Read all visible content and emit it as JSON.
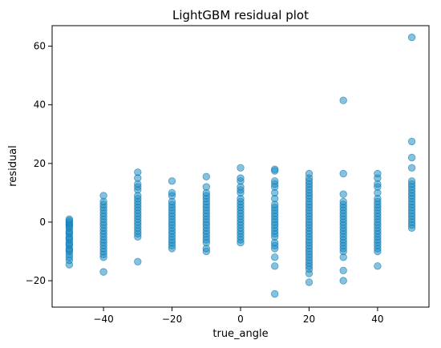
{
  "chart_data": {
    "type": "scatter",
    "title": "LightGBM residual plot",
    "xlabel": "true_angle",
    "ylabel": "residual",
    "xlim": [
      -55,
      55
    ],
    "ylim": [
      -29,
      67
    ],
    "xticks": [
      -40,
      -20,
      0,
      20,
      40
    ],
    "yticks": [
      -20,
      0,
      20,
      40,
      60
    ],
    "xtick_labels": [
      "−40",
      "−20",
      "0",
      "20",
      "40"
    ],
    "ytick_labels": [
      "−20",
      "0",
      "20",
      "40",
      "60"
    ],
    "grid": false,
    "marker_color": "#1f8fc4",
    "marker_edge_color": "#0b6fa8",
    "marker_opacity": 0.55,
    "series": [
      {
        "points": [
          [
            -50,
            -14.5
          ],
          [
            -50,
            -13
          ],
          [
            -50,
            -12
          ],
          [
            -50,
            -11
          ],
          [
            -50,
            -10
          ],
          [
            -50,
            -9.5
          ],
          [
            -50,
            -9
          ],
          [
            -50,
            -8
          ],
          [
            -50,
            -7.5
          ],
          [
            -50,
            -7
          ],
          [
            -50,
            -6
          ],
          [
            -50,
            -5.5
          ],
          [
            -50,
            -5
          ],
          [
            -50,
            -4
          ],
          [
            -50,
            -3.5
          ],
          [
            -50,
            -3
          ],
          [
            -50,
            -2
          ],
          [
            -50,
            -1.5
          ],
          [
            -50,
            -1
          ],
          [
            -50,
            -0.5
          ],
          [
            -50,
            0
          ],
          [
            -50,
            0.5
          ],
          [
            -50,
            1
          ],
          [
            -40,
            -17
          ],
          [
            -40,
            -12
          ],
          [
            -40,
            -11
          ],
          [
            -40,
            -10
          ],
          [
            -40,
            -9
          ],
          [
            -40,
            -8
          ],
          [
            -40,
            -7
          ],
          [
            -40,
            -6
          ],
          [
            -40,
            -5
          ],
          [
            -40,
            -4
          ],
          [
            -40,
            -3
          ],
          [
            -40,
            -2
          ],
          [
            -40,
            -1
          ],
          [
            -40,
            0
          ],
          [
            -40,
            1
          ],
          [
            -40,
            2
          ],
          [
            -40,
            3
          ],
          [
            -40,
            4
          ],
          [
            -40,
            5
          ],
          [
            -40,
            6
          ],
          [
            -40,
            7
          ],
          [
            -40,
            9
          ],
          [
            -30,
            -13.5
          ],
          [
            -30,
            -5
          ],
          [
            -30,
            -4
          ],
          [
            -30,
            -3
          ],
          [
            -30,
            -2
          ],
          [
            -30,
            -1
          ],
          [
            -30,
            0
          ],
          [
            -30,
            1
          ],
          [
            -30,
            2
          ],
          [
            -30,
            3
          ],
          [
            -30,
            4
          ],
          [
            -30,
            5
          ],
          [
            -30,
            6
          ],
          [
            -30,
            7
          ],
          [
            -30,
            8
          ],
          [
            -30,
            9
          ],
          [
            -30,
            11
          ],
          [
            -30,
            12
          ],
          [
            -30,
            13
          ],
          [
            -30,
            15
          ],
          [
            -30,
            17
          ],
          [
            -20,
            -9
          ],
          [
            -20,
            -8
          ],
          [
            -20,
            -7
          ],
          [
            -20,
            -6
          ],
          [
            -20,
            -5
          ],
          [
            -20,
            -4
          ],
          [
            -20,
            -3
          ],
          [
            -20,
            -2
          ],
          [
            -20,
            -1
          ],
          [
            -20,
            0
          ],
          [
            -20,
            1
          ],
          [
            -20,
            2
          ],
          [
            -20,
            3
          ],
          [
            -20,
            4
          ],
          [
            -20,
            5
          ],
          [
            -20,
            6
          ],
          [
            -20,
            7
          ],
          [
            -20,
            9
          ],
          [
            -20,
            10
          ],
          [
            -20,
            14
          ],
          [
            -10,
            -10
          ],
          [
            -10,
            -9
          ],
          [
            -10,
            -7
          ],
          [
            -10,
            -6
          ],
          [
            -10,
            -5
          ],
          [
            -10,
            -4
          ],
          [
            -10,
            -3
          ],
          [
            -10,
            -2
          ],
          [
            -10,
            -1
          ],
          [
            -10,
            0
          ],
          [
            -10,
            1
          ],
          [
            -10,
            2
          ],
          [
            -10,
            3
          ],
          [
            -10,
            4
          ],
          [
            -10,
            5
          ],
          [
            -10,
            6
          ],
          [
            -10,
            7
          ],
          [
            -10,
            8
          ],
          [
            -10,
            9
          ],
          [
            -10,
            10
          ],
          [
            -10,
            12
          ],
          [
            -10,
            15.5
          ],
          [
            0,
            -7
          ],
          [
            0,
            -6
          ],
          [
            0,
            -5
          ],
          [
            0,
            -4
          ],
          [
            0,
            -3
          ],
          [
            0,
            -2
          ],
          [
            0,
            -1
          ],
          [
            0,
            0
          ],
          [
            0,
            1
          ],
          [
            0,
            2
          ],
          [
            0,
            3
          ],
          [
            0,
            4
          ],
          [
            0,
            5
          ],
          [
            0,
            6
          ],
          [
            0,
            7
          ],
          [
            0,
            8
          ],
          [
            0,
            10
          ],
          [
            0,
            11
          ],
          [
            0,
            12
          ],
          [
            0,
            14
          ],
          [
            0,
            15
          ],
          [
            0,
            18.5
          ],
          [
            10,
            -24.5
          ],
          [
            10,
            -15
          ],
          [
            10,
            -12
          ],
          [
            10,
            -9
          ],
          [
            10,
            -8
          ],
          [
            10,
            -7
          ],
          [
            10,
            -5
          ],
          [
            10,
            -4
          ],
          [
            10,
            -3
          ],
          [
            10,
            -2
          ],
          [
            10,
            -1
          ],
          [
            10,
            0
          ],
          [
            10,
            1
          ],
          [
            10,
            2
          ],
          [
            10,
            3
          ],
          [
            10,
            4
          ],
          [
            10,
            5
          ],
          [
            10,
            6
          ],
          [
            10,
            8
          ],
          [
            10,
            10
          ],
          [
            10,
            12
          ],
          [
            10,
            13
          ],
          [
            10,
            14
          ],
          [
            10,
            17.5
          ],
          [
            10,
            18
          ],
          [
            20,
            -20.5
          ],
          [
            20,
            -17.5
          ],
          [
            20,
            -16
          ],
          [
            20,
            -15
          ],
          [
            20,
            -14
          ],
          [
            20,
            -13
          ],
          [
            20,
            -12
          ],
          [
            20,
            -11
          ],
          [
            20,
            -10
          ],
          [
            20,
            -9
          ],
          [
            20,
            -8
          ],
          [
            20,
            -7
          ],
          [
            20,
            -6
          ],
          [
            20,
            -5
          ],
          [
            20,
            -4
          ],
          [
            20,
            -3
          ],
          [
            20,
            -2
          ],
          [
            20,
            -1
          ],
          [
            20,
            0
          ],
          [
            20,
            1
          ],
          [
            20,
            2
          ],
          [
            20,
            3
          ],
          [
            20,
            4
          ],
          [
            20,
            5
          ],
          [
            20,
            6
          ],
          [
            20,
            7
          ],
          [
            20,
            8
          ],
          [
            20,
            9
          ],
          [
            20,
            10
          ],
          [
            20,
            11
          ],
          [
            20,
            12
          ],
          [
            20,
            13
          ],
          [
            20,
            14
          ],
          [
            20,
            15
          ],
          [
            20,
            16.5
          ],
          [
            30,
            -20
          ],
          [
            30,
            -16.5
          ],
          [
            30,
            -12
          ],
          [
            30,
            -10
          ],
          [
            30,
            -9
          ],
          [
            30,
            -8
          ],
          [
            30,
            -7
          ],
          [
            30,
            -6
          ],
          [
            30,
            -5
          ],
          [
            30,
            -4
          ],
          [
            30,
            -3
          ],
          [
            30,
            -2
          ],
          [
            30,
            -1
          ],
          [
            30,
            0
          ],
          [
            30,
            1
          ],
          [
            30,
            2
          ],
          [
            30,
            3
          ],
          [
            30,
            4
          ],
          [
            30,
            5
          ],
          [
            30,
            6
          ],
          [
            30,
            7
          ],
          [
            30,
            9.5
          ],
          [
            30,
            16.5
          ],
          [
            30,
            41.5
          ],
          [
            40,
            -15
          ],
          [
            40,
            -10
          ],
          [
            40,
            -9
          ],
          [
            40,
            -8
          ],
          [
            40,
            -7
          ],
          [
            40,
            -6
          ],
          [
            40,
            -5
          ],
          [
            40,
            -4
          ],
          [
            40,
            -3
          ],
          [
            40,
            -2
          ],
          [
            40,
            -1
          ],
          [
            40,
            0
          ],
          [
            40,
            1
          ],
          [
            40,
            2
          ],
          [
            40,
            3
          ],
          [
            40,
            4
          ],
          [
            40,
            5
          ],
          [
            40,
            6
          ],
          [
            40,
            7
          ],
          [
            40,
            8
          ],
          [
            40,
            10
          ],
          [
            40,
            12
          ],
          [
            40,
            13
          ],
          [
            40,
            15
          ],
          [
            40,
            16.5
          ],
          [
            50,
            -2
          ],
          [
            50,
            -1
          ],
          [
            50,
            0
          ],
          [
            50,
            1
          ],
          [
            50,
            2
          ],
          [
            50,
            3
          ],
          [
            50,
            4
          ],
          [
            50,
            5
          ],
          [
            50,
            6
          ],
          [
            50,
            7
          ],
          [
            50,
            8
          ],
          [
            50,
            9
          ],
          [
            50,
            10
          ],
          [
            50,
            11
          ],
          [
            50,
            12
          ],
          [
            50,
            13
          ],
          [
            50,
            14
          ],
          [
            50,
            18.5
          ],
          [
            50,
            22
          ],
          [
            50,
            27.5
          ],
          [
            50,
            63
          ]
        ]
      }
    ]
  }
}
